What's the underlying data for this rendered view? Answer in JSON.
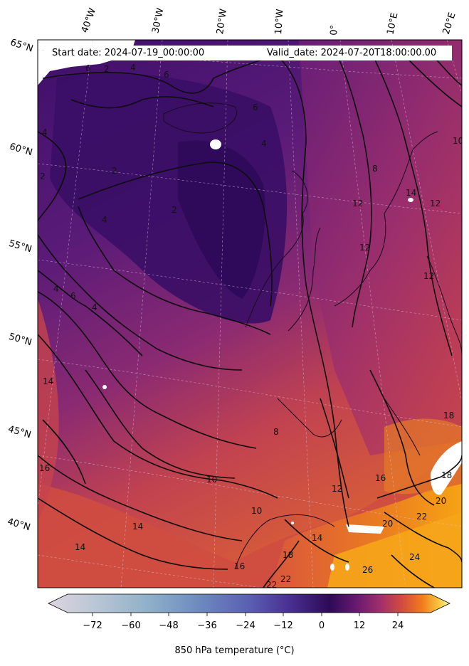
{
  "header": {
    "start_label": "Start date: 2024-07-19_00:00:00",
    "valid_label": "Valid_date: 2024-07-20T18:00:00.00"
  },
  "map": {
    "variable": "850 hPa temperature",
    "lon_labels": [
      "40°W",
      "30°W",
      "20°W",
      "10°W",
      "0°",
      "10°E",
      "20°E"
    ],
    "lat_labels": [
      "65°N",
      "60°N",
      "55°N",
      "50°N",
      "45°N",
      "40°N"
    ],
    "contour_labels": [
      "4",
      "6",
      "2",
      "4",
      "2",
      "2",
      "6",
      "4",
      "2",
      "6",
      "4",
      "4",
      "10",
      "12",
      "12",
      "14",
      "12",
      "8",
      "6",
      "4",
      "14",
      "16",
      "14",
      "10",
      "8",
      "12",
      "14",
      "16",
      "18",
      "20",
      "22",
      "24",
      "26",
      "22",
      "18",
      "10",
      "14",
      "18",
      "20",
      "22",
      "12",
      "16"
    ]
  },
  "colorbar": {
    "title": "850 hPa temperature (°C)",
    "ticks": [
      "−72",
      "−60",
      "−48",
      "−36",
      "−24",
      "−12",
      "0",
      "12",
      "24"
    ],
    "colors": {
      "cold_end": "#ded5e0",
      "blue": "#6e8cc0",
      "indigo": "#4a2f93",
      "dark": "#2c0b56",
      "purple": "#8a2a78",
      "red": "#d24a3f",
      "orange": "#f39a14",
      "warm_end": "#fbfc9b"
    }
  }
}
